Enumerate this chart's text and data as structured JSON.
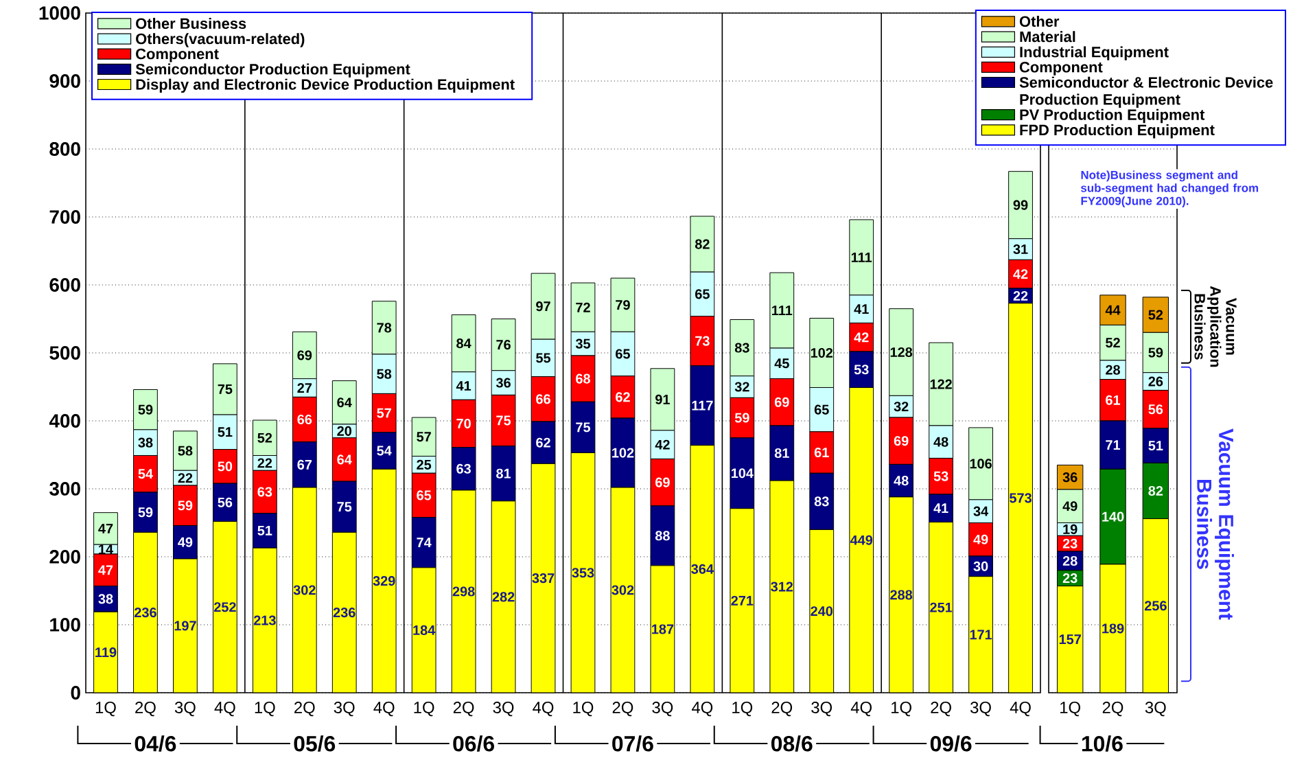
{
  "chart_data": [
    {
      "type": "bar",
      "stacked": true,
      "categories": [
        "1Q",
        "2Q",
        "3Q",
        "4Q",
        "1Q",
        "2Q",
        "3Q",
        "4Q",
        "1Q",
        "2Q",
        "3Q",
        "4Q",
        "1Q",
        "2Q",
        "3Q",
        "4Q",
        "1Q",
        "2Q",
        "3Q",
        "4Q",
        "1Q",
        "2Q",
        "3Q",
        "4Q"
      ],
      "series": [
        {
          "name": "Display and Electronic Device Production Equipment",
          "color": "#ffff00",
          "values": [
            119,
            236,
            197,
            252,
            213,
            302,
            236,
            329,
            184,
            298,
            282,
            337,
            353,
            302,
            187,
            364,
            271,
            312,
            240,
            449,
            288,
            251,
            171,
            573
          ]
        },
        {
          "name": "Semiconductor Production Equipment",
          "color": "#000080",
          "values": [
            38,
            59,
            49,
            56,
            51,
            67,
            75,
            54,
            74,
            63,
            81,
            62,
            75,
            102,
            88,
            117,
            104,
            81,
            83,
            53,
            48,
            41,
            30,
            22
          ]
        },
        {
          "name": "Component",
          "color": "#ff0000",
          "values": [
            47,
            54,
            59,
            50,
            63,
            66,
            64,
            57,
            65,
            70,
            75,
            66,
            68,
            62,
            69,
            73,
            59,
            69,
            61,
            42,
            69,
            53,
            49,
            42
          ]
        },
        {
          "name": "Others(vacuum-related)",
          "color": "#ccffff",
          "values": [
            14,
            38,
            22,
            51,
            22,
            27,
            20,
            58,
            25,
            41,
            36,
            55,
            35,
            65,
            42,
            65,
            32,
            45,
            65,
            41,
            32,
            48,
            34,
            31
          ]
        },
        {
          "name": "Other Business",
          "color": "#ccffcc",
          "values": [
            47,
            59,
            58,
            75,
            52,
            69,
            64,
            78,
            57,
            84,
            76,
            97,
            72,
            79,
            91,
            82,
            83,
            111,
            102,
            111,
            128,
            122,
            106,
            99
          ]
        }
      ],
      "ylim": [
        0,
        1000
      ],
      "yticks": [
        0,
        100,
        200,
        300,
        400,
        500,
        600,
        700,
        800,
        900,
        1000
      ],
      "grid": "y",
      "legend": "top left",
      "data_labels": true,
      "annotations": [
        "04/6",
        "05/6",
        "06/6",
        "07/6",
        "08/6",
        "09/6"
      ]
    },
    {
      "type": "bar",
      "stacked": true,
      "categories": [
        "1Q",
        "2Q",
        "3Q"
      ],
      "series": [
        {
          "name": "FPD Production Equipment",
          "color": "#ffff00",
          "values": [
            157,
            189,
            256
          ]
        },
        {
          "name": "PV Production Equipment",
          "color": "#008000",
          "values": [
            23,
            140,
            82
          ]
        },
        {
          "name": "Semiconductor & Electronic Device Production Equipment",
          "color": "#000080",
          "values": [
            28,
            71,
            51
          ]
        },
        {
          "name": "Component",
          "color": "#ff0000",
          "values": [
            23,
            61,
            56
          ]
        },
        {
          "name": "Industrial Equipment",
          "color": "#ccffff",
          "values": [
            19,
            28,
            26
          ]
        },
        {
          "name": "Material",
          "color": "#ccffcc",
          "values": [
            49,
            52,
            59
          ]
        },
        {
          "name": "Other",
          "color": "#e69b00",
          "values": [
            36,
            44,
            52
          ]
        }
      ],
      "ylim": [
        0,
        1000
      ],
      "yticks": [
        0,
        100,
        200,
        300,
        400,
        500,
        600,
        700,
        800,
        900,
        1000
      ],
      "tick_labels": "x",
      "grid": "y",
      "legend": "top right",
      "data_labels": true,
      "annotations": [
        "10/6",
        "Note)Business segment and sub-segment had changed from FY2009(June 2010).",
        "Vacuum Application Business",
        "Vacuum Equipment Business"
      ]
    }
  ]
}
